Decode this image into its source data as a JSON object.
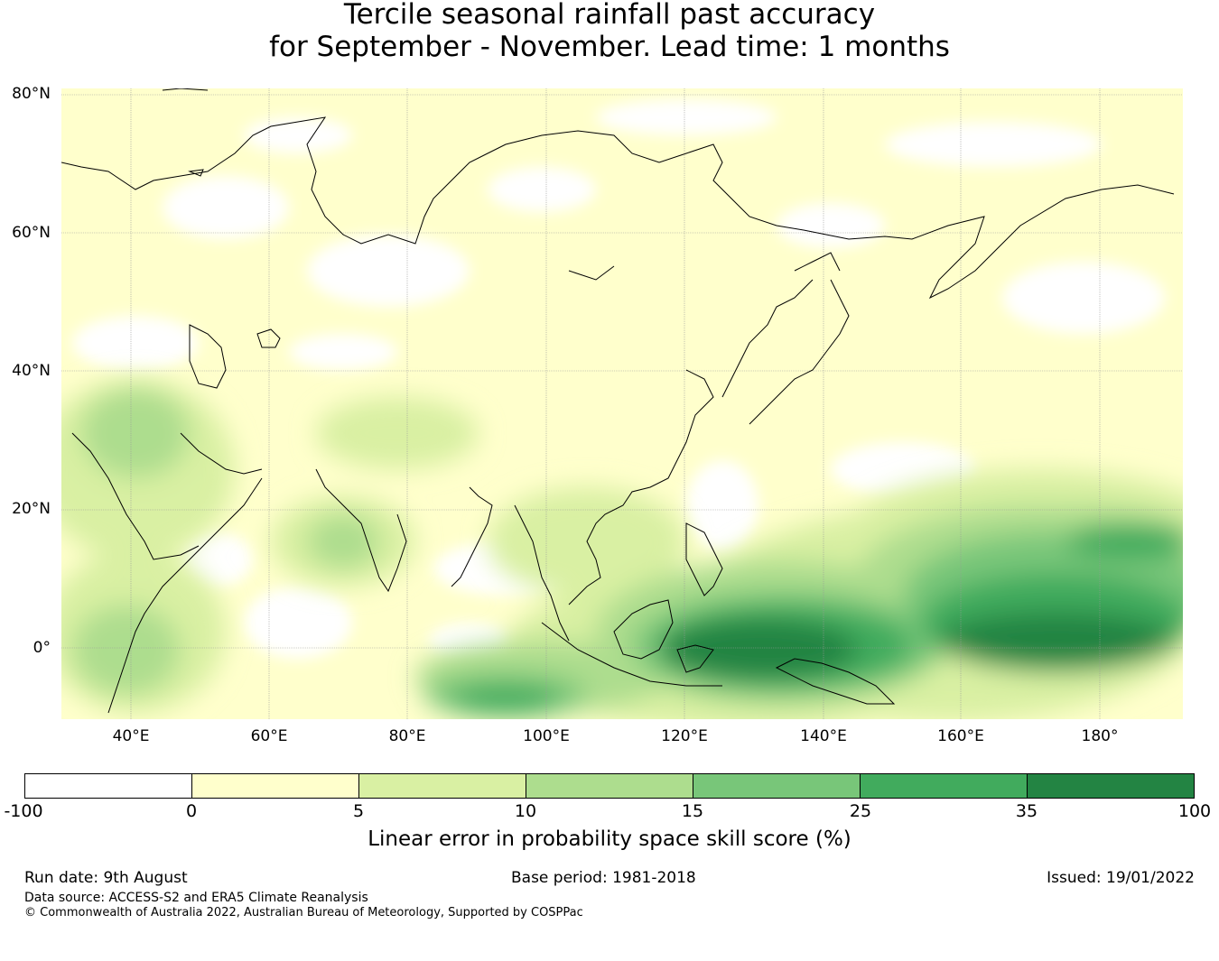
{
  "title": {
    "line1": "Tercile seasonal rainfall past accuracy",
    "line2": "for September - November. Lead time: 1 months"
  },
  "map": {
    "latitude_labels": [
      "80°N",
      "60°N",
      "40°N",
      "20°N",
      "0°"
    ],
    "longitude_labels": [
      "40°E",
      "60°E",
      "80°E",
      "100°E",
      "120°E",
      "140°E",
      "160°E",
      "180°"
    ]
  },
  "colorbar": {
    "label": "Linear error in probability space skill score (%)",
    "ticks": [
      "-100",
      "0",
      "5",
      "10",
      "15",
      "25",
      "35",
      "100"
    ],
    "colors": [
      "#ffffff",
      "#ffffcc",
      "#d9f0a3",
      "#addd8e",
      "#78c679",
      "#41ab5d",
      "#238443"
    ]
  },
  "footer": {
    "run_date": "Run date: 9th August",
    "base_period": "Base period: 1981-2018",
    "issued": "Issued: 19/01/2022",
    "data_source": "Data source: ACCESS-S2 and ERA5 Climate Reanalysis",
    "copyright": "© Commonwealth of Australia 2022, Australian Bureau of Meteorology, Supported by COSPPac"
  }
}
